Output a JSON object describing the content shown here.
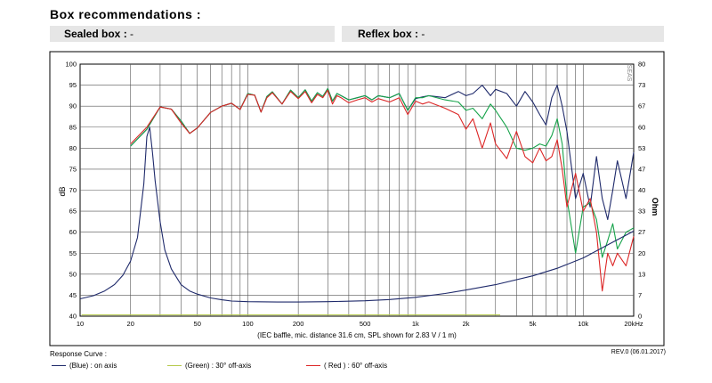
{
  "header": {
    "title": "Box recommendations :",
    "sealed_label": "Sealed box :",
    "sealed_value": "-",
    "reflex_label": "Reflex box :",
    "reflex_value": "-"
  },
  "chart_data": {
    "type": "line",
    "xscale": "log",
    "xlim": [
      10,
      20000
    ],
    "ylim": [
      40,
      100
    ],
    "y2lim": [
      0,
      80
    ],
    "ylabel": "dB",
    "y2label": "Ohm",
    "xlabel": "(IEC baffle, mic. distance 31.6 cm, SPL shown for 2.83 V / 1 m)",
    "x_ticks": [
      10,
      20,
      50,
      100,
      200,
      500,
      1000,
      2000,
      5000,
      10000,
      20000
    ],
    "x_tick_labels": [
      "10",
      "20",
      "50",
      "100",
      "200",
      "500",
      "1k",
      "2k",
      "5k",
      "10k",
      "20kHz"
    ],
    "y_ticks": [
      40,
      45,
      50,
      55,
      60,
      65,
      70,
      75,
      80,
      85,
      90,
      95,
      100
    ],
    "y2_ticks": [
      0,
      7,
      13,
      20,
      27,
      33,
      40,
      47,
      53,
      60,
      67,
      73,
      80
    ],
    "watermark": "SEAS",
    "grid": true,
    "series": [
      {
        "name": "(Blue) : on axis",
        "color": "#1f2a6b",
        "x": [
          20,
          25,
          30,
          35,
          40,
          45,
          50,
          60,
          70,
          80,
          90,
          100,
          110,
          120,
          130,
          140,
          160,
          180,
          200,
          220,
          240,
          260,
          280,
          300,
          320,
          340,
          360,
          400,
          450,
          500,
          550,
          600,
          700,
          800,
          900,
          1000,
          1100,
          1200,
          1500,
          1800,
          2000,
          2200,
          2500,
          2800,
          3000,
          3500,
          4000,
          4500,
          5000,
          5500,
          6000,
          6500,
          7000,
          7500,
          8000,
          9000,
          10000,
          11000,
          12000,
          13000,
          14000,
          15000,
          16000,
          18000,
          20000
        ],
        "y": [
          80.5,
          84.5,
          89.8,
          89.3,
          86.5,
          83.5,
          84.8,
          88.5,
          90.0,
          90.7,
          89.2,
          93.0,
          92.6,
          88.6,
          92.3,
          93.4,
          90.5,
          93.8,
          92.0,
          93.9,
          91.2,
          93.2,
          92.3,
          94.2,
          91.2,
          93.0,
          92.5,
          91.5,
          92.0,
          92.5,
          91.5,
          92.5,
          92.0,
          93.0,
          89.0,
          91.8,
          92.2,
          92.5,
          92.0,
          93.5,
          92.5,
          93.0,
          95.0,
          92.5,
          94.0,
          93.0,
          90.0,
          93.5,
          91.0,
          88.0,
          85.5,
          92.0,
          95.0,
          90.0,
          84.0,
          68.0,
          74.0,
          66.0,
          78.0,
          68.0,
          63.0,
          70.0,
          77.0,
          68.0,
          79.0
        ]
      },
      {
        "name": "(Green) : 30° off-axis",
        "color": "#16a34a",
        "x": [
          20,
          25,
          30,
          35,
          40,
          45,
          50,
          60,
          70,
          80,
          90,
          100,
          110,
          120,
          130,
          140,
          160,
          180,
          200,
          220,
          240,
          260,
          280,
          300,
          320,
          340,
          360,
          400,
          450,
          500,
          550,
          600,
          700,
          800,
          900,
          1000,
          1100,
          1200,
          1500,
          1800,
          2000,
          2200,
          2500,
          2800,
          3000,
          3500,
          4000,
          4500,
          5000,
          5500,
          6000,
          6500,
          7000,
          7500,
          8000,
          9000,
          10000,
          11000,
          12000,
          13000,
          14000,
          15000,
          16000,
          18000,
          20000
        ],
        "y": [
          80.5,
          84.5,
          89.8,
          89.3,
          86.5,
          83.5,
          84.8,
          88.5,
          90.0,
          90.7,
          89.2,
          93.0,
          92.6,
          88.6,
          92.3,
          93.4,
          90.5,
          93.8,
          92.0,
          93.9,
          91.2,
          93.2,
          92.3,
          94.2,
          91.2,
          93.0,
          92.5,
          91.5,
          92.0,
          92.5,
          91.5,
          92.5,
          92.0,
          93.0,
          89.0,
          92.0,
          92.0,
          92.5,
          91.5,
          91.0,
          89.0,
          89.5,
          87.0,
          90.5,
          89.0,
          85.0,
          80.0,
          79.5,
          80.0,
          81.0,
          80.5,
          83.0,
          87.0,
          81.0,
          68.0,
          55.0,
          66.0,
          67.0,
          63.0,
          54.0,
          58.0,
          62.0,
          56.0,
          60.0,
          61.0
        ]
      },
      {
        "name": "( Red ) : 60° off-axis",
        "color": "#dc2626",
        "x": [
          20,
          25,
          30,
          35,
          40,
          45,
          50,
          60,
          70,
          80,
          90,
          100,
          110,
          120,
          130,
          140,
          160,
          180,
          200,
          220,
          240,
          260,
          280,
          300,
          320,
          340,
          360,
          400,
          450,
          500,
          550,
          600,
          700,
          800,
          900,
          1000,
          1100,
          1200,
          1500,
          1800,
          2000,
          2200,
          2500,
          2800,
          3000,
          3500,
          4000,
          4500,
          5000,
          5500,
          6000,
          6500,
          7000,
          7500,
          8000,
          9000,
          10000,
          11000,
          12000,
          13000,
          14000,
          15000,
          16000,
          18000,
          20000
        ],
        "y": [
          81.0,
          85.0,
          89.8,
          89.3,
          86.0,
          83.5,
          84.8,
          88.5,
          90.0,
          90.7,
          89.2,
          92.8,
          92.6,
          88.6,
          92.0,
          93.2,
          90.5,
          93.5,
          91.8,
          93.5,
          90.8,
          92.8,
          92.0,
          93.8,
          90.5,
          92.5,
          92.0,
          90.8,
          91.5,
          92.0,
          91.0,
          91.8,
          91.0,
          92.0,
          88.0,
          91.2,
          90.5,
          91.0,
          89.5,
          88.0,
          84.5,
          87.0,
          80.0,
          86.0,
          81.0,
          77.5,
          84.0,
          78.0,
          76.5,
          80.0,
          77.0,
          78.0,
          82.0,
          75.0,
          66.0,
          74.0,
          65.0,
          68.0,
          60.0,
          46.0,
          55.0,
          52.0,
          55.0,
          52.0,
          59.0
        ]
      },
      {
        "name": "Impedance",
        "color": "#1f2a6b",
        "axis": "right",
        "x": [
          10,
          12,
          14,
          16,
          18,
          20,
          22,
          24,
          25,
          26,
          27,
          28,
          30,
          32,
          35,
          40,
          45,
          50,
          60,
          70,
          80,
          100,
          150,
          200,
          300,
          500,
          700,
          1000,
          1500,
          2000,
          3000,
          5000,
          7000,
          10000,
          15000,
          20000
        ],
        "y": [
          5.5,
          6.5,
          8.0,
          10.0,
          13.0,
          17.5,
          25.0,
          42.0,
          57.0,
          60.0,
          52.0,
          43.0,
          30.0,
          21.0,
          15.0,
          10.0,
          8.0,
          7.0,
          5.8,
          5.2,
          4.8,
          4.6,
          4.5,
          4.5,
          4.6,
          4.9,
          5.3,
          6.0,
          7.2,
          8.3,
          10.0,
          12.8,
          15.2,
          18.5,
          23.5,
          27.0
        ]
      }
    ],
    "legend_title": "Response Curve :",
    "revision": "REV.0 (06.01.2017)"
  }
}
